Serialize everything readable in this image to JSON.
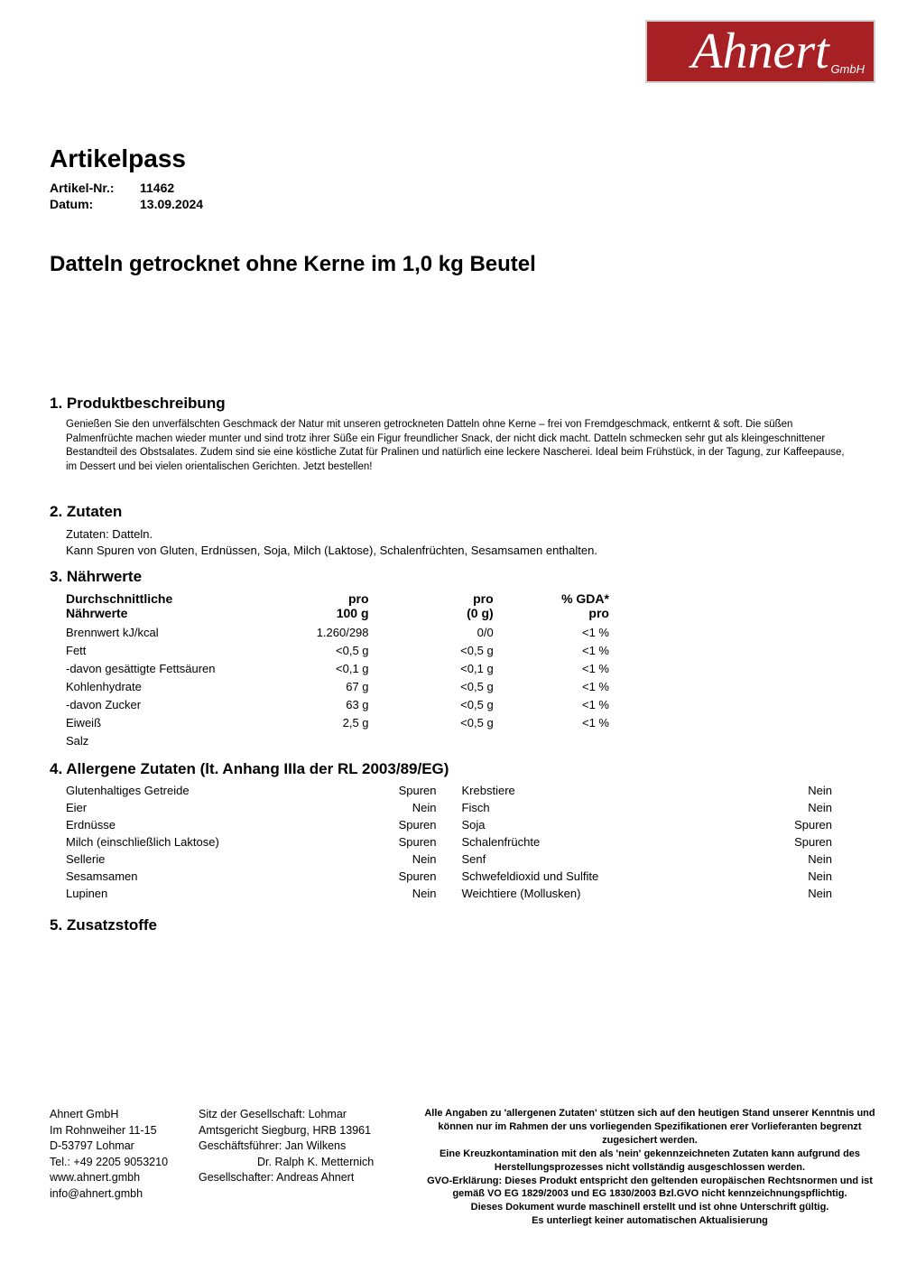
{
  "logo": {
    "name": "Ahnert",
    "suffix": "GmbH",
    "bg_color": "#a62024"
  },
  "header": {
    "doc_title": "Artikelpass",
    "article_label": "Artikel-Nr.:",
    "article_value": "11462",
    "date_label": "Datum:",
    "date_value": "13.09.2024",
    "product_title": "Datteln getrocknet ohne Kerne im 1,0 kg Beutel"
  },
  "sections": {
    "s1_title": "1. Produktbeschreibung",
    "s1_body": "Genießen Sie den unverfälschten Geschmack der Natur mit unseren getrockneten Datteln ohne Kerne – frei von Fremdgeschmack, entkernt & soft. Die süßen Palmenfrüchte machen wieder munter und sind trotz ihrer Süße ein Figur freundlicher Snack, der nicht dick macht. Datteln schmecken sehr gut als kleingeschnittener Bestandteil des Obstsalates. Zudem sind sie eine köstliche Zutat für Pralinen und natürlich eine leckere Nascherei. Ideal beim Frühstück, in der Tagung, zur Kaffeepause, im Dessert und bei vielen orientalischen Gerichten. Jetzt bestellen!",
    "s2_title": "2. Zutaten",
    "s2_line1": "Zutaten: Datteln.",
    "s2_line2": "Kann Spuren von Gluten, Erdnüssen, Soja, Milch (Laktose), Schalenfrüchten, Sesamsamen enthalten.",
    "s3_title": "3. Nährwerte",
    "s4_title": "4. Allergene Zutaten (lt. Anhang IIIa der RL 2003/89/EG)",
    "s5_title": "5. Zusatzstoffe"
  },
  "nutrition": {
    "h1a": "Durchschnittliche",
    "h1b": "Nährwerte",
    "h2a": "pro",
    "h2b": "100 g",
    "h3a": "pro",
    "h3b": "(0 g)",
    "h4a": "% GDA*",
    "h4b": "pro",
    "rows": [
      {
        "name": "Brennwert kJ/kcal",
        "p100": "1.260/298",
        "p0": "0/0",
        "gda": "<1 %"
      },
      {
        "name": "Fett",
        "p100": "<0,5 g",
        "p0": "<0,5 g",
        "gda": "<1 %"
      },
      {
        "name": "-davon gesättigte Fettsäuren",
        "p100": "<0,1 g",
        "p0": "<0,1 g",
        "gda": "<1 %"
      },
      {
        "name": "Kohlenhydrate",
        "p100": "67 g",
        "p0": "<0,5 g",
        "gda": "<1 %"
      },
      {
        "name": "-davon Zucker",
        "p100": "63 g",
        "p0": "<0,5 g",
        "gda": "<1 %"
      },
      {
        "name": "Eiweiß",
        "p100": "2,5 g",
        "p0": "<0,5 g",
        "gda": "<1 %"
      },
      {
        "name": "Salz",
        "p100": "",
        "p0": "",
        "gda": ""
      }
    ]
  },
  "allergens": {
    "left": [
      {
        "name": "Glutenhaltiges Getreide",
        "val": "Spuren"
      },
      {
        "name": "Eier",
        "val": "Nein"
      },
      {
        "name": "Erdnüsse",
        "val": "Spuren"
      },
      {
        "name": "Milch (einschließlich Laktose)",
        "val": "Spuren"
      },
      {
        "name": "Sellerie",
        "val": "Nein"
      },
      {
        "name": "Sesamsamen",
        "val": "Spuren"
      },
      {
        "name": "Lupinen",
        "val": "Nein"
      }
    ],
    "right": [
      {
        "name": "Krebstiere",
        "val": "Nein"
      },
      {
        "name": "Fisch",
        "val": "Nein"
      },
      {
        "name": "Soja",
        "val": "Spuren"
      },
      {
        "name": "Schalenfrüchte",
        "val": "Spuren"
      },
      {
        "name": "Senf",
        "val": "Nein"
      },
      {
        "name": "Schwefeldioxid und Sulfite",
        "val": "Nein"
      },
      {
        "name": "Weichtiere (Mollusken)",
        "val": "Nein"
      }
    ]
  },
  "footer": {
    "col1": [
      "Ahnert GmbH",
      "Im Rohnweiher 11-15",
      "D-53797 Lohmar",
      "Tel.: +49 2205 9053210",
      "www.ahnert.gmbh",
      "info@ahnert.gmbh"
    ],
    "col2": [
      "Sitz der Gesellschaft: Lohmar",
      "Amtsgericht Siegburg, HRB 13961",
      "Geschäftsführer: Jan Wilkens",
      "",
      "Gesellschafter: Andreas Ahnert"
    ],
    "col2_indent": "Dr. Ralph K. Metternich",
    "col3": [
      "Alle Angaben zu 'allergenen Zutaten' stützen sich auf den heutigen Stand unserer Kenntnis und können nur im Rahmen der uns vorliegenden Spezifikationen erer Vorlieferanten begrenzt zugesichert werden.",
      "Eine Kreuzkontamination mit den als 'nein' gekennzeichneten Zutaten kann aufgrund des Herstellungsprozesses nicht vollständig ausgeschlossen werden.",
      "GVO-Erklärung: Dieses Produkt entspricht den geltenden europäischen Rechtsnormen und ist gemäß VO EG 1829/2003 und EG 1830/2003 Bzl.GVO nicht kennzeichnungspflichtig.",
      "Dieses Dokument wurde maschinell erstellt und ist ohne Unterschrift gültig.",
      "Es unterliegt keiner automatischen Aktualisierung"
    ]
  }
}
